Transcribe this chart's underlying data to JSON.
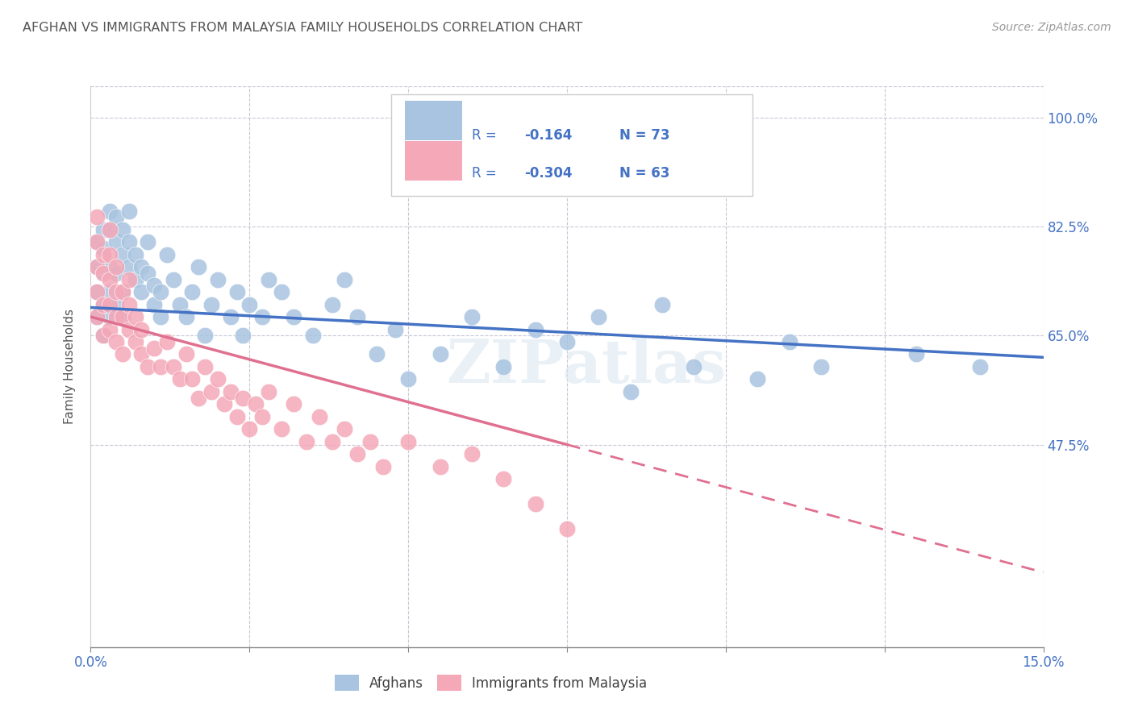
{
  "title": "AFGHAN VS IMMIGRANTS FROM MALAYSIA FAMILY HOUSEHOLDS CORRELATION CHART",
  "source": "Source: ZipAtlas.com",
  "ylabel": "Family Households",
  "watermark": "ZIPatlas",
  "blue_color": "#a8c4e0",
  "pink_color": "#f4a8b8",
  "blue_line_color": "#4472c4",
  "pink_line_color": "#e07090",
  "axis_label_color": "#4472c4",
  "title_color": "#555555",
  "legend_text_color": "#4472c4",
  "r_val_color": "#4472c4",
  "bg_color": "#ffffff",
  "grid_color": "#c8c8d8",
  "legend_blue_r_val": "-0.164",
  "legend_blue_n": "N = 73",
  "legend_pink_r_val": "-0.304",
  "legend_pink_n": "N = 63",
  "afghans_x": [
    0.001,
    0.001,
    0.001,
    0.001,
    0.002,
    0.002,
    0.002,
    0.002,
    0.002,
    0.003,
    0.003,
    0.003,
    0.003,
    0.003,
    0.004,
    0.004,
    0.004,
    0.004,
    0.005,
    0.005,
    0.005,
    0.005,
    0.006,
    0.006,
    0.006,
    0.007,
    0.007,
    0.008,
    0.008,
    0.009,
    0.009,
    0.01,
    0.01,
    0.011,
    0.011,
    0.012,
    0.013,
    0.014,
    0.015,
    0.016,
    0.017,
    0.018,
    0.019,
    0.02,
    0.022,
    0.023,
    0.024,
    0.025,
    0.027,
    0.028,
    0.03,
    0.032,
    0.035,
    0.038,
    0.04,
    0.042,
    0.045,
    0.048,
    0.05,
    0.055,
    0.06,
    0.065,
    0.07,
    0.075,
    0.08,
    0.085,
    0.09,
    0.095,
    0.105,
    0.11,
    0.115,
    0.13,
    0.14
  ],
  "afghans_y": [
    0.68,
    0.72,
    0.76,
    0.8,
    0.65,
    0.7,
    0.75,
    0.79,
    0.82,
    0.68,
    0.72,
    0.76,
    0.82,
    0.85,
    0.7,
    0.75,
    0.8,
    0.84,
    0.68,
    0.72,
    0.78,
    0.82,
    0.76,
    0.8,
    0.85,
    0.74,
    0.78,
    0.72,
    0.76,
    0.8,
    0.75,
    0.7,
    0.73,
    0.68,
    0.72,
    0.78,
    0.74,
    0.7,
    0.68,
    0.72,
    0.76,
    0.65,
    0.7,
    0.74,
    0.68,
    0.72,
    0.65,
    0.7,
    0.68,
    0.74,
    0.72,
    0.68,
    0.65,
    0.7,
    0.74,
    0.68,
    0.62,
    0.66,
    0.58,
    0.62,
    0.68,
    0.6,
    0.66,
    0.64,
    0.68,
    0.56,
    0.7,
    0.6,
    0.58,
    0.64,
    0.6,
    0.62,
    0.6
  ],
  "malaysia_x": [
    0.001,
    0.001,
    0.001,
    0.001,
    0.001,
    0.002,
    0.002,
    0.002,
    0.002,
    0.003,
    0.003,
    0.003,
    0.003,
    0.003,
    0.004,
    0.004,
    0.004,
    0.004,
    0.005,
    0.005,
    0.005,
    0.006,
    0.006,
    0.006,
    0.007,
    0.007,
    0.008,
    0.008,
    0.009,
    0.01,
    0.011,
    0.012,
    0.013,
    0.014,
    0.015,
    0.016,
    0.017,
    0.018,
    0.019,
    0.02,
    0.021,
    0.022,
    0.023,
    0.024,
    0.025,
    0.026,
    0.027,
    0.028,
    0.03,
    0.032,
    0.034,
    0.036,
    0.038,
    0.04,
    0.042,
    0.044,
    0.046,
    0.05,
    0.055,
    0.06,
    0.065,
    0.07,
    0.075
  ],
  "malaysia_y": [
    0.68,
    0.72,
    0.76,
    0.8,
    0.84,
    0.65,
    0.7,
    0.75,
    0.78,
    0.66,
    0.7,
    0.74,
    0.78,
    0.82,
    0.64,
    0.68,
    0.72,
    0.76,
    0.62,
    0.68,
    0.72,
    0.66,
    0.7,
    0.74,
    0.64,
    0.68,
    0.62,
    0.66,
    0.6,
    0.63,
    0.6,
    0.64,
    0.6,
    0.58,
    0.62,
    0.58,
    0.55,
    0.6,
    0.56,
    0.58,
    0.54,
    0.56,
    0.52,
    0.55,
    0.5,
    0.54,
    0.52,
    0.56,
    0.5,
    0.54,
    0.48,
    0.52,
    0.48,
    0.5,
    0.46,
    0.48,
    0.44,
    0.48,
    0.44,
    0.46,
    0.42,
    0.38,
    0.34
  ],
  "xlim": [
    0.0,
    0.15
  ],
  "ylim": [
    0.15,
    1.05
  ],
  "ytick_vals": [
    0.475,
    0.65,
    0.825,
    1.0
  ],
  "ytick_labels": [
    "47.5%",
    "65.0%",
    "82.5%",
    "100.0%"
  ],
  "xtick_vals": [
    0.0,
    0.025,
    0.05,
    0.075,
    0.1,
    0.125,
    0.15
  ],
  "xtick_labels": [
    "0.0%",
    "",
    "",
    "",
    "",
    "",
    "15.0%"
  ],
  "blue_line_x": [
    0.0,
    0.15
  ],
  "blue_line_y": [
    0.695,
    0.615
  ],
  "pink_line_x0": 0.0,
  "pink_line_x1": 0.075,
  "pink_line_x2": 0.15,
  "pink_line_y0": 0.68,
  "pink_line_y1": 0.475,
  "pink_line_y2": 0.27
}
